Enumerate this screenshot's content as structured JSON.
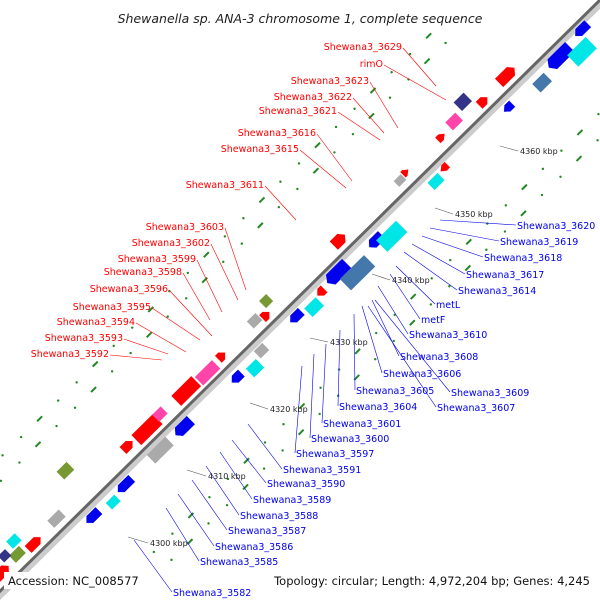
{
  "title": "Shewanella sp. ANA-3 chromosome 1, complete sequence",
  "accession": "Accession: NC_008577",
  "topology": "Topology: circular; Length: 4,972,204 bp; Genes: 4,245",
  "ticks": [
    "4300 kbp",
    "4310 kbp",
    "4320 kbp",
    "4330 kbp",
    "4340 kbp",
    "4350 kbp",
    "4360 kbp"
  ],
  "colors": {
    "forward": "#ff0000",
    "reverse": "#0000ee",
    "backbone": "#888888",
    "gc_marker": "#228822",
    "cyan": "#00e5e5",
    "navy": "#333388",
    "olive": "#779933",
    "pink": "#ff44aa",
    "gray": "#aaaaaa",
    "steel": "#4477aa"
  },
  "labels_forward": [
    "Shewana3_3629",
    "rimO",
    "Shewana3_3623",
    "Shewana3_3622",
    "Shewana3_3621",
    "Shewana3_3616",
    "Shewana3_3615",
    "Shewana3_3611",
    "Shewana3_3603",
    "Shewana3_3602",
    "Shewana3_3599",
    "Shewana3_3598",
    "Shewana3_3596",
    "Shewana3_3595",
    "Shewana3_3594",
    "Shewana3_3593",
    "Shewana3_3592"
  ],
  "labels_reverse": [
    "Shewana3_3620",
    "Shewana3_3619",
    "Shewana3_3618",
    "Shewana3_3617",
    "Shewana3_3614",
    "metL",
    "metF",
    "Shewana3_3610",
    "Shewana3_3608",
    "Shewana3_3606",
    "Shewana3_3609",
    "Shewana3_3605",
    "Shewana3_3607",
    "Shewana3_3604",
    "Shewana3_3601",
    "Shewana3_3600",
    "Shewana3_3597",
    "Shewana3_3591",
    "Shewana3_3590",
    "Shewana3_3589",
    "Shewana3_3588",
    "Shewana3_3587",
    "Shewana3_3586",
    "Shewana3_3585",
    "Shewana3_3582"
  ]
}
